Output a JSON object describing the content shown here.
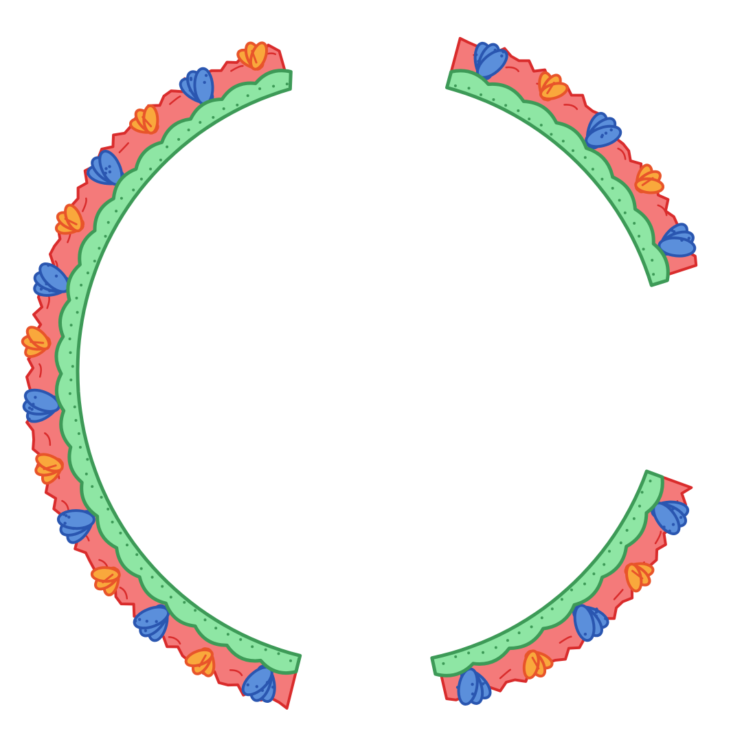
{
  "illustration": {
    "kind": "hand-drawn floral wreath frame",
    "segments": [
      "left-arc",
      "top-right-arc",
      "bottom-right-arc"
    ],
    "colors": {
      "background": "#ffffff",
      "foliage_fill": "#f47a7a",
      "foliage_stroke": "#d92c2c",
      "vine_fill": "#8ee6a4",
      "vine_stroke": "#3d9a57",
      "flower_blue_fill": "#5b8fdb",
      "flower_blue_stroke": "#2a56b0",
      "flower_orange_fill": "#f9a83c",
      "flower_orange_stroke": "#e8542a"
    },
    "element_icons": [
      "leaf-cluster-icon",
      "blue-flower-icon",
      "orange-flower-icon"
    ]
  }
}
